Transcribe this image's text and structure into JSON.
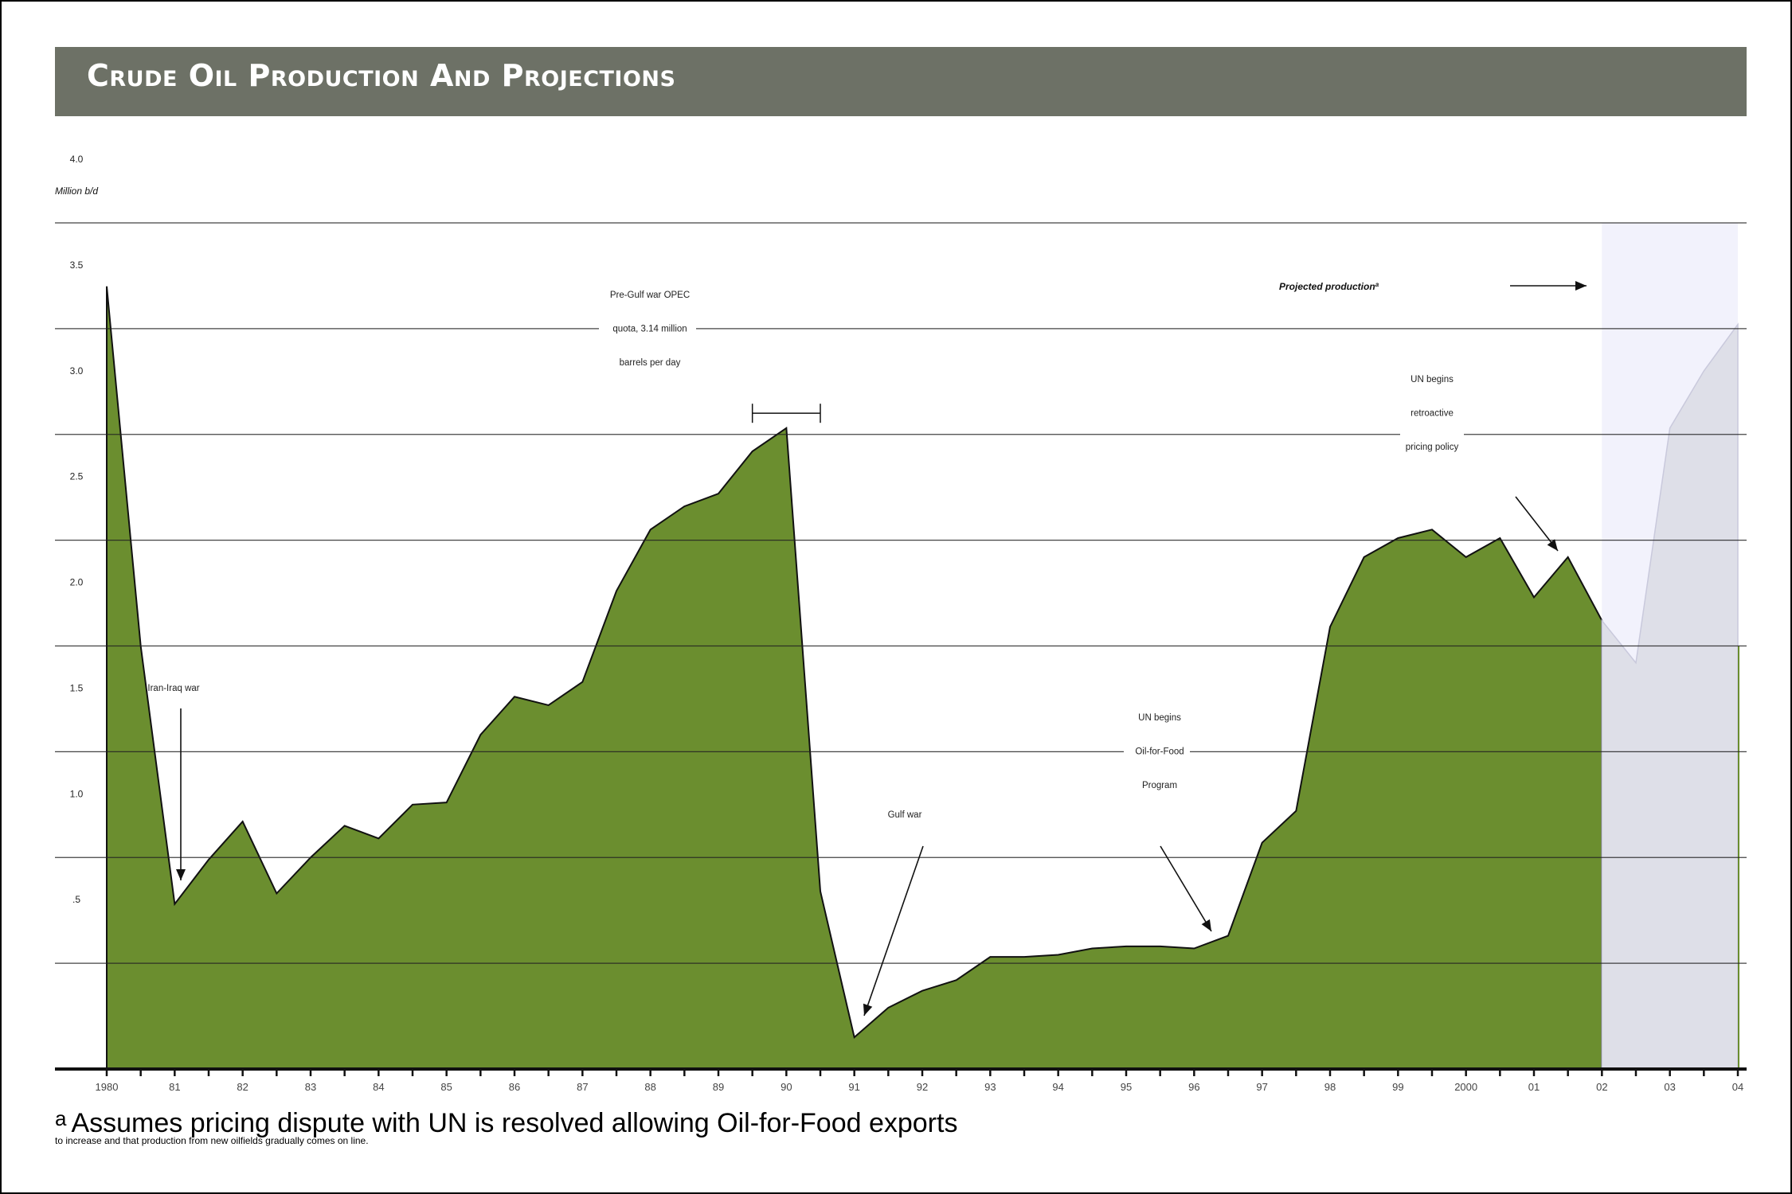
{
  "page": {
    "title": "Crude Oil Production And Projections"
  },
  "footnote": {
    "marker": "a",
    "text": "Assumes pricing dispute with UN is resolved allowing Oil-for-Food exports",
    "continuation": "to increase and that production from new oilfields gradually comes on line."
  },
  "colors": {
    "banner": "#6d7166",
    "area": "#6b8e2f",
    "projection_band": "#f2f2fc",
    "projection_area": "#dedfe8"
  },
  "chart_data": {
    "type": "area",
    "ylabel": "Million b/d",
    "ylim": [
      0,
      4.0
    ],
    "yticks": [
      0.5,
      1.0,
      1.5,
      2.0,
      2.5,
      3.0,
      3.5,
      4.0
    ],
    "ytick_labels": [
      ".5",
      "1.0",
      "1.5",
      "2.0",
      "2.5",
      "3.0",
      "3.5",
      "4.0"
    ],
    "xlim": [
      1980,
      2004
    ],
    "xtick_values": [
      1980,
      1981,
      1982,
      1983,
      1984,
      1985,
      1986,
      1987,
      1988,
      1989,
      1990,
      1991,
      1992,
      1993,
      1994,
      1995,
      1996,
      1997,
      1998,
      1999,
      2000,
      2001,
      2002,
      2003,
      2004
    ],
    "xtick_labels": [
      "1980",
      "81",
      "82",
      "83",
      "84",
      "85",
      "86",
      "87",
      "88",
      "89",
      "90",
      "91",
      "92",
      "93",
      "94",
      "95",
      "96",
      "97",
      "98",
      "99",
      "2000",
      "01",
      "02",
      "03",
      "04"
    ],
    "grid": true,
    "series": [
      {
        "x": [
          1980,
          1980.5,
          1981,
          1981.5,
          1982,
          1982.5,
          1983,
          1983.5,
          1984,
          1984.5,
          1985,
          1985.5,
          1986,
          1986.5,
          1987,
          1987.5,
          1988,
          1988.5,
          1989,
          1989.5,
          1990,
          1990.5,
          1991,
          1991.5,
          1992,
          1992.5,
          1993,
          1993.5,
          1994,
          1994.5,
          1995,
          1995.5,
          1996,
          1996.5,
          1997,
          1997.5,
          1998,
          1998.5,
          1999,
          1999.5,
          2000,
          2000.5,
          2001,
          2001.5,
          2002
        ],
        "values": [
          3.7,
          2.0,
          0.78,
          0.99,
          1.17,
          0.83,
          1.0,
          1.15,
          1.09,
          1.25,
          1.26,
          1.58,
          1.76,
          1.72,
          1.83,
          2.26,
          2.55,
          2.66,
          2.72,
          2.92,
          3.03,
          0.84,
          0.15,
          0.29,
          0.37,
          0.42,
          0.53,
          0.53,
          0.54,
          0.57,
          0.58,
          0.58,
          0.57,
          0.63,
          1.07,
          1.22,
          2.09,
          2.42,
          2.51,
          2.55,
          2.42,
          2.51,
          2.23,
          2.42,
          2.12
        ]
      },
      {
        "name": "Projected production",
        "x": [
          2002,
          2002.5,
          2003,
          2003.5,
          2004
        ],
        "values": [
          2.12,
          1.92,
          3.03,
          3.3,
          3.52
        ]
      }
    ],
    "reference_line": {
      "value": 3.14,
      "label": "Pre-Gulf war OPEC quota, 3.14 million barrels per day"
    },
    "annotations": [
      {
        "text": [
          "Iran-Iraq war"
        ]
      },
      {
        "text": [
          "Pre-Gulf war OPEC",
          "quota, 3.14 million",
          "barrels per day"
        ]
      },
      {
        "text": [
          "Gulf war"
        ]
      },
      {
        "text": [
          "UN begins",
          "Oil-for-Food",
          "Program"
        ]
      },
      {
        "text": [
          "UN begins",
          "retroactive",
          "pricing policy"
        ]
      },
      {
        "text": [
          "Projected production",
          "a"
        ]
      }
    ]
  }
}
